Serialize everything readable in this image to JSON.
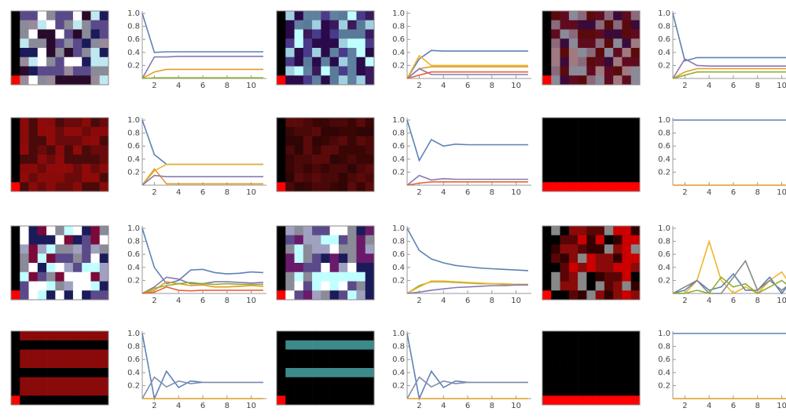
{
  "chart_data": [
    {
      "type": "line",
      "x": [
        1,
        2,
        3,
        4,
        5,
        6,
        7,
        8,
        9,
        10,
        11
      ],
      "xlim": [
        1,
        11
      ],
      "ylim": [
        0,
        1
      ],
      "xticks": [
        2,
        4,
        6,
        8,
        10
      ],
      "yticks": [
        0.2,
        0.4,
        0.6,
        0.8,
        {
          "value": 1,
          "label": "1.0"
        }
      ],
      "series": [
        {
          "color": "#5E81B5",
          "values": [
            1,
            0.4,
            0.41,
            0.41,
            0.41,
            0.41,
            0.41,
            0.41,
            0.41,
            0.41,
            0.41
          ]
        },
        {
          "color": "#8778B3",
          "values": [
            0,
            0.33,
            0.33,
            0.34,
            0.34,
            0.34,
            0.34,
            0.34,
            0.34,
            0.34,
            0.34
          ]
        },
        {
          "color": "#E19C24",
          "values": [
            0,
            0.1,
            0.14,
            0.14,
            0.14,
            0.14,
            0.14,
            0.14,
            0.14,
            0.14,
            0.14
          ]
        },
        {
          "color": "#8FB032",
          "values": [
            0,
            0.01,
            0.01,
            0.01,
            0.01,
            0.01,
            0.01,
            0.01,
            0.01,
            0.01,
            0.01
          ]
        }
      ]
    },
    {
      "type": "line",
      "x": [
        1,
        2,
        3,
        4,
        5,
        6,
        7,
        8,
        9,
        10,
        11
      ],
      "xlim": [
        1,
        11
      ],
      "ylim": [
        0,
        1
      ],
      "xticks": [
        2,
        4,
        6,
        8,
        10
      ],
      "yticks": [
        0.2,
        0.4,
        0.6,
        0.8,
        {
          "value": 1,
          "label": "1.0"
        }
      ],
      "series": [
        {
          "color": "#5E81B5",
          "values": [
            0,
            0.3,
            0.43,
            0.42,
            0.42,
            0.42,
            0.42,
            0.42,
            0.42,
            0.42,
            0.42
          ]
        },
        {
          "color": "#F0B429",
          "values": [
            0,
            0.35,
            0.2,
            0.2,
            0.2,
            0.2,
            0.2,
            0.2,
            0.2,
            0.2,
            0.2
          ]
        },
        {
          "color": "#E19C24",
          "values": [
            0,
            0.15,
            0.18,
            0.18,
            0.18,
            0.18,
            0.18,
            0.18,
            0.18,
            0.18,
            0.18
          ]
        },
        {
          "color": "#8778B3",
          "values": [
            0,
            0.15,
            0.06,
            0.06,
            0.06,
            0.06,
            0.06,
            0.06,
            0.06,
            0.06,
            0.06
          ]
        },
        {
          "color": "#EB6235",
          "values": [
            0,
            0.05,
            0.1,
            0.1,
            0.1,
            0.1,
            0.1,
            0.1,
            0.1,
            0.1,
            0.1
          ]
        }
      ]
    },
    {
      "type": "line",
      "x": [
        1,
        2,
        3,
        4,
        5,
        6,
        7,
        8,
        9,
        10,
        11
      ],
      "xlim": [
        1,
        11
      ],
      "ylim": [
        0,
        1
      ],
      "xticks": [
        2,
        4,
        6,
        8,
        10
      ],
      "yticks": [
        0.2,
        0.4,
        0.6,
        0.8,
        {
          "value": 1,
          "label": "1.0"
        }
      ],
      "series": [
        {
          "color": "#5E81B5",
          "values": [
            1,
            0.27,
            0.32,
            0.32,
            0.32,
            0.32,
            0.32,
            0.32,
            0.32,
            0.32,
            0.32
          ]
        },
        {
          "color": "#8778B3",
          "values": [
            0,
            0.3,
            0.2,
            0.19,
            0.19,
            0.19,
            0.19,
            0.19,
            0.19,
            0.19,
            0.19
          ]
        },
        {
          "color": "#E19C24",
          "values": [
            0,
            0.1,
            0.15,
            0.15,
            0.15,
            0.15,
            0.15,
            0.15,
            0.15,
            0.15,
            0.15
          ]
        },
        {
          "color": "#8FB032",
          "values": [
            0,
            0.05,
            0.1,
            0.1,
            0.1,
            0.1,
            0.1,
            0.1,
            0.1,
            0.1,
            0.1
          ]
        }
      ]
    },
    {
      "type": "line",
      "x": [
        1,
        2,
        3,
        4,
        5,
        6,
        7,
        8,
        9,
        10,
        11
      ],
      "xlim": [
        1,
        11
      ],
      "ylim": [
        0,
        1
      ],
      "xticks": [
        2,
        4,
        6,
        8,
        10
      ],
      "yticks": [
        0.2,
        0.4,
        0.6,
        0.8,
        {
          "value": 1,
          "label": "1.0"
        }
      ],
      "series": [
        {
          "color": "#5E81B5",
          "values": [
            1,
            0.47,
            0.32,
            0.32,
            0.32,
            0.32,
            0.32,
            0.32,
            0.32,
            0.32,
            0.32
          ]
        },
        {
          "color": "#F0B429",
          "values": [
            0,
            0.22,
            0.32,
            0.32,
            0.32,
            0.32,
            0.32,
            0.32,
            0.32,
            0.32,
            0.32
          ]
        },
        {
          "color": "#E19C24",
          "values": [
            0,
            0.25,
            0.02,
            0.02,
            0.02,
            0.02,
            0.02,
            0.02,
            0.02,
            0.02,
            0.02
          ]
        },
        {
          "color": "#8778B3",
          "values": [
            0,
            0.15,
            0.13,
            0.13,
            0.13,
            0.13,
            0.13,
            0.13,
            0.13,
            0.13,
            0.13
          ]
        }
      ]
    },
    {
      "type": "line",
      "x": [
        1,
        2,
        3,
        4,
        5,
        6,
        7,
        8,
        9,
        10,
        11
      ],
      "xlim": [
        1,
        11
      ],
      "ylim": [
        0,
        1
      ],
      "xticks": [
        2,
        4,
        6,
        8,
        10
      ],
      "yticks": [
        0.2,
        0.4,
        0.6,
        0.8,
        {
          "value": 1,
          "label": "1.0"
        }
      ],
      "series": [
        {
          "color": "#5E81B5",
          "values": [
            1,
            0.38,
            0.7,
            0.6,
            0.63,
            0.62,
            0.62,
            0.62,
            0.62,
            0.62,
            0.62
          ]
        },
        {
          "color": "#8778B3",
          "values": [
            0,
            0.15,
            0.08,
            0.1,
            0.09,
            0.09,
            0.09,
            0.09,
            0.09,
            0.09,
            0.09
          ]
        },
        {
          "color": "#EB6235",
          "values": [
            0,
            0.03,
            0.05,
            0.05,
            0.05,
            0.05,
            0.05,
            0.05,
            0.05,
            0.05,
            0.05
          ]
        }
      ]
    },
    {
      "type": "line",
      "x": [
        1,
        2,
        3,
        4,
        5,
        6,
        7,
        8,
        9,
        10,
        11
      ],
      "xlim": [
        1,
        11
      ],
      "ylim": [
        0,
        1
      ],
      "xticks": [
        2,
        4,
        6,
        8,
        10
      ],
      "yticks": [
        0.2,
        0.4,
        0.6,
        0.8,
        {
          "value": 1,
          "label": "1.0"
        }
      ],
      "series": [
        {
          "color": "#5E81B5",
          "values": [
            1,
            1,
            1,
            1,
            1,
            1,
            1,
            1,
            1,
            1,
            1
          ]
        },
        {
          "color": "#E19C24",
          "values": [
            0,
            0,
            0,
            0,
            0,
            0,
            0,
            0,
            0,
            0,
            0
          ]
        }
      ]
    },
    {
      "type": "line",
      "x": [
        1,
        2,
        3,
        4,
        5,
        6,
        7,
        8,
        9,
        10,
        11
      ],
      "xlim": [
        1,
        11
      ],
      "ylim": [
        0,
        1
      ],
      "xticks": [
        2,
        4,
        6,
        8,
        10
      ],
      "yticks": [
        0.2,
        0.4,
        0.6,
        0.8,
        {
          "value": 1,
          "label": "1.0"
        }
      ],
      "series": [
        {
          "color": "#5E81B5",
          "values": [
            1,
            0.4,
            0.15,
            0.2,
            0.36,
            0.37,
            0.32,
            0.3,
            0.31,
            0.33,
            0.32
          ]
        },
        {
          "color": "#8778B3",
          "values": [
            0,
            0.1,
            0.25,
            0.22,
            0.15,
            0.15,
            0.18,
            0.18,
            0.17,
            0.16,
            0.17
          ]
        },
        {
          "color": "#E19C24",
          "values": [
            0,
            0.05,
            0.18,
            0.15,
            0.12,
            0.13,
            0.1,
            0.1,
            0.11,
            0.12,
            0.11
          ]
        },
        {
          "color": "#8FB032",
          "values": [
            0,
            0.08,
            0.12,
            0.15,
            0.17,
            0.15,
            0.14,
            0.15,
            0.14,
            0.14,
            0.14
          ]
        },
        {
          "color": "#EB6235",
          "values": [
            0,
            0.02,
            0.1,
            0.05,
            0.04,
            0.05,
            0.05,
            0.05,
            0.05,
            0.05,
            0.05
          ]
        }
      ]
    },
    {
      "type": "line",
      "x": [
        1,
        2,
        3,
        4,
        5,
        6,
        7,
        8,
        9,
        10,
        11
      ],
      "xlim": [
        1,
        11
      ],
      "ylim": [
        0,
        1
      ],
      "xticks": [
        2,
        4,
        6,
        8,
        10
      ],
      "yticks": [
        0.2,
        0.4,
        0.6,
        0.8,
        {
          "value": 1,
          "label": "1.0"
        }
      ],
      "series": [
        {
          "color": "#5E81B5",
          "values": [
            1,
            0.66,
            0.53,
            0.47,
            0.43,
            0.41,
            0.39,
            0.38,
            0.37,
            0.36,
            0.35
          ]
        },
        {
          "color": "#8FB032",
          "values": [
            0,
            0.12,
            0.18,
            0.18,
            0.17,
            0.16,
            0.15,
            0.15,
            0.14,
            0.14,
            0.14
          ]
        },
        {
          "color": "#F0B429",
          "values": [
            0,
            0.1,
            0.19,
            0.19,
            0.18,
            0.17,
            0.16,
            0.15,
            0.15,
            0.14,
            0.14
          ]
        },
        {
          "color": "#8778B3",
          "values": [
            0,
            0.02,
            0.05,
            0.07,
            0.09,
            0.1,
            0.11,
            0.12,
            0.12,
            0.13,
            0.13
          ]
        }
      ]
    },
    {
      "type": "line",
      "x": [
        1,
        2,
        3,
        4,
        5,
        6,
        7,
        8,
        9,
        10,
        11
      ],
      "xlim": [
        1,
        11
      ],
      "ylim": [
        0,
        1
      ],
      "xticks": [
        2,
        4,
        6,
        8,
        10
      ],
      "yticks": [
        0.2,
        0.4,
        0.6,
        0.8,
        {
          "value": 1,
          "label": "1.0"
        }
      ],
      "series": [
        {
          "color": "#F0B429",
          "values": [
            0,
            0,
            0.2,
            0.8,
            0.2,
            0,
            0.1,
            0,
            0.2,
            0.33,
            0.05
          ]
        },
        {
          "color": "#5E81B5",
          "values": [
            0,
            0.05,
            0.2,
            0.05,
            0.1,
            0.3,
            0.05,
            0.05,
            0.25,
            0,
            0.25
          ]
        },
        {
          "color": "#888888",
          "values": [
            0,
            0.1,
            0.2,
            0,
            0,
            0.25,
            0.5,
            0.05,
            0.2,
            0.05,
            0.2
          ]
        },
        {
          "color": "#8FB032",
          "values": [
            0,
            0,
            0.05,
            0,
            0.25,
            0.1,
            0.15,
            0,
            0.1,
            0.2,
            0.05
          ]
        }
      ]
    },
    {
      "type": "line",
      "x": [
        1,
        2,
        3,
        4,
        5,
        6,
        7,
        8,
        9,
        10,
        11
      ],
      "xlim": [
        1,
        11
      ],
      "ylim": [
        0,
        1
      ],
      "xticks": [
        2,
        4,
        6,
        8,
        10
      ],
      "yticks": [
        0.2,
        0.4,
        0.6,
        0.8,
        {
          "value": 1,
          "label": "1.0"
        }
      ],
      "series": [
        {
          "color": "#5E81B5",
          "values": [
            1,
            0,
            0.42,
            0.17,
            0.27,
            0.25,
            0.25,
            0.25,
            0.25,
            0.25,
            0.25
          ]
        },
        {
          "color": "#7F8FB0",
          "values": [
            0,
            0.33,
            0.18,
            0.27,
            0.23,
            0.25,
            0.25,
            0.25,
            0.25,
            0.25,
            0.25
          ]
        },
        {
          "color": "#E19C24",
          "values": [
            0,
            0,
            0,
            0,
            0,
            0,
            0,
            0,
            0,
            0,
            0
          ]
        }
      ]
    },
    {
      "type": "line",
      "x": [
        1,
        2,
        3,
        4,
        5,
        6,
        7,
        8,
        9,
        10,
        11
      ],
      "xlim": [
        1,
        11
      ],
      "ylim": [
        0,
        1
      ],
      "xticks": [
        2,
        4,
        6,
        8,
        10
      ],
      "yticks": [
        0.2,
        0.4,
        0.6,
        0.8,
        {
          "value": 1,
          "label": "1.0"
        }
      ],
      "series": [
        {
          "color": "#5E81B5",
          "values": [
            1,
            0,
            0.42,
            0.17,
            0.27,
            0.25,
            0.25,
            0.25,
            0.25,
            0.25,
            0.25
          ]
        },
        {
          "color": "#7F8FB0",
          "values": [
            0,
            0.33,
            0.18,
            0.27,
            0.23,
            0.25,
            0.25,
            0.25,
            0.25,
            0.25,
            0.25
          ]
        },
        {
          "color": "#E19C24",
          "values": [
            0,
            0,
            0,
            0,
            0,
            0,
            0,
            0,
            0,
            0,
            0
          ]
        }
      ]
    },
    {
      "type": "line",
      "x": [
        1,
        2,
        3,
        4,
        5,
        6,
        7,
        8,
        9,
        10,
        11
      ],
      "xlim": [
        1,
        11
      ],
      "ylim": [
        0,
        1
      ],
      "xticks": [
        2,
        4,
        6,
        8,
        10
      ],
      "yticks": [
        0.2,
        0.4,
        0.6,
        0.8,
        {
          "value": 1,
          "label": "1.0"
        }
      ],
      "series": [
        {
          "color": "#5E81B5",
          "values": [
            1,
            1,
            1,
            1,
            1,
            1,
            1,
            1,
            1,
            1,
            1
          ]
        },
        {
          "color": "#E19C24",
          "values": [
            0,
            0,
            0,
            0,
            0,
            0,
            0,
            0,
            0,
            0,
            0
          ]
        }
      ]
    }
  ]
}
